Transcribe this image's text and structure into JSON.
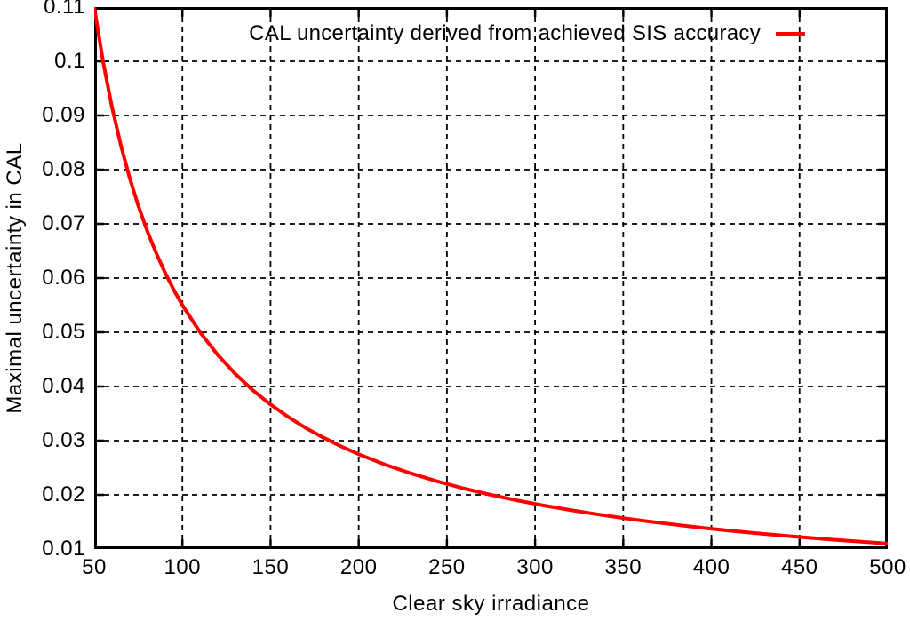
{
  "chart_data": {
    "type": "line",
    "title": "",
    "xlabel": "Clear sky irradiance",
    "ylabel": "Maximal uncertainty in CAL",
    "xlim": [
      50,
      500
    ],
    "ylim": [
      0.01,
      0.11
    ],
    "xticks": [
      50,
      100,
      150,
      200,
      250,
      300,
      350,
      400,
      450,
      500
    ],
    "xtick_labels": [
      "50",
      "100",
      "150",
      "200",
      "250",
      "300",
      "350",
      "400",
      "450",
      "500"
    ],
    "yticks": [
      0.01,
      0.02,
      0.03,
      0.04,
      0.05,
      0.06,
      0.07,
      0.08,
      0.09,
      0.1,
      0.11
    ],
    "ytick_labels": [
      "0.01",
      "0.02",
      "0.03",
      "0.04",
      "0.05",
      "0.06",
      "0.07",
      "0.08",
      "0.09",
      "0.1",
      "0.11"
    ],
    "grid": true,
    "grid_style": "black-dashed",
    "background_color": "#ffffff",
    "axis_color": "#000000",
    "legend": {
      "position": "top-center-inside",
      "entries": [
        {
          "label": "CAL uncertainty derived from achieved SIS accuracy",
          "color": "#ff0000"
        }
      ]
    },
    "series": [
      {
        "name": "CAL uncertainty derived from achieved SIS accuracy",
        "color": "#ff0000",
        "points": [
          [
            50,
            0.11
          ],
          [
            55,
            0.1
          ],
          [
            60,
            0.09167
          ],
          [
            65,
            0.08462
          ],
          [
            70,
            0.07857
          ],
          [
            75,
            0.07333
          ],
          [
            80,
            0.06875
          ],
          [
            85,
            0.06471
          ],
          [
            90,
            0.06111
          ],
          [
            95,
            0.05789
          ],
          [
            100,
            0.055
          ],
          [
            110,
            0.05
          ],
          [
            120,
            0.04583
          ],
          [
            130,
            0.04231
          ],
          [
            140,
            0.03929
          ],
          [
            150,
            0.03667
          ],
          [
            160,
            0.03438
          ],
          [
            170,
            0.03235
          ],
          [
            180,
            0.03056
          ],
          [
            190,
            0.02895
          ],
          [
            200,
            0.0275
          ],
          [
            215,
            0.02558
          ],
          [
            230,
            0.02391
          ],
          [
            245,
            0.02245
          ],
          [
            260,
            0.02115
          ],
          [
            275,
            0.02
          ],
          [
            290,
            0.01897
          ],
          [
            305,
            0.01803
          ],
          [
            320,
            0.01719
          ],
          [
            335,
            0.01642
          ],
          [
            350,
            0.01571
          ],
          [
            365,
            0.01507
          ],
          [
            380,
            0.01447
          ],
          [
            395,
            0.01392
          ],
          [
            410,
            0.01341
          ],
          [
            425,
            0.01294
          ],
          [
            440,
            0.0125
          ],
          [
            455,
            0.01209
          ],
          [
            470,
            0.0117
          ],
          [
            485,
            0.01134
          ],
          [
            500,
            0.011
          ]
        ]
      }
    ]
  }
}
